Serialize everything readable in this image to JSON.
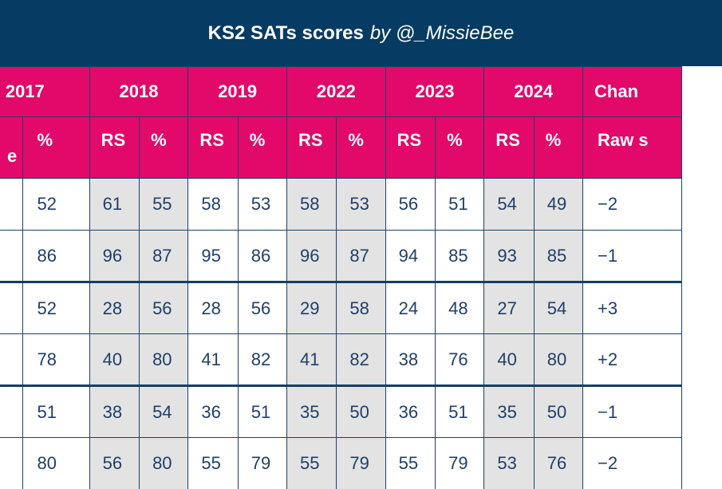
{
  "title": {
    "bold": "KS2 SATs scores",
    "italic": "by @_MissieBee"
  },
  "header_years": [
    "2017",
    "2018",
    "2019",
    "2022",
    "2023",
    "2024",
    "Chan"
  ],
  "header_sub": [
    "e",
    "%",
    "RS",
    "%",
    "RS",
    "%",
    "RS",
    "%",
    "RS",
    "%",
    "RS",
    "%",
    "Raw s"
  ],
  "rows": [
    [
      "",
      "52",
      "61",
      "55",
      "58",
      "53",
      "58",
      "53",
      "56",
      "51",
      "54",
      "49",
      "−2"
    ],
    [
      "",
      "86",
      "96",
      "87",
      "95",
      "86",
      "96",
      "87",
      "94",
      "85",
      "93",
      "85",
      "−1"
    ],
    [
      "",
      "52",
      "28",
      "56",
      "28",
      "56",
      "29",
      "58",
      "24",
      "48",
      "27",
      "54",
      "+3"
    ],
    [
      "",
      "78",
      "40",
      "80",
      "41",
      "82",
      "41",
      "82",
      "38",
      "76",
      "40",
      "80",
      "+2"
    ],
    [
      "",
      "51",
      "38",
      "54",
      "36",
      "51",
      "35",
      "50",
      "36",
      "51",
      "35",
      "50",
      "−1"
    ],
    [
      "",
      "80",
      "56",
      "80",
      "55",
      "79",
      "55",
      "79",
      "55",
      "79",
      "53",
      "76",
      "−2"
    ]
  ],
  "colors": {
    "banner": "#063b63",
    "header": "#e2096a",
    "shade": "#e3e3e3",
    "text": "#1f3f6a"
  }
}
